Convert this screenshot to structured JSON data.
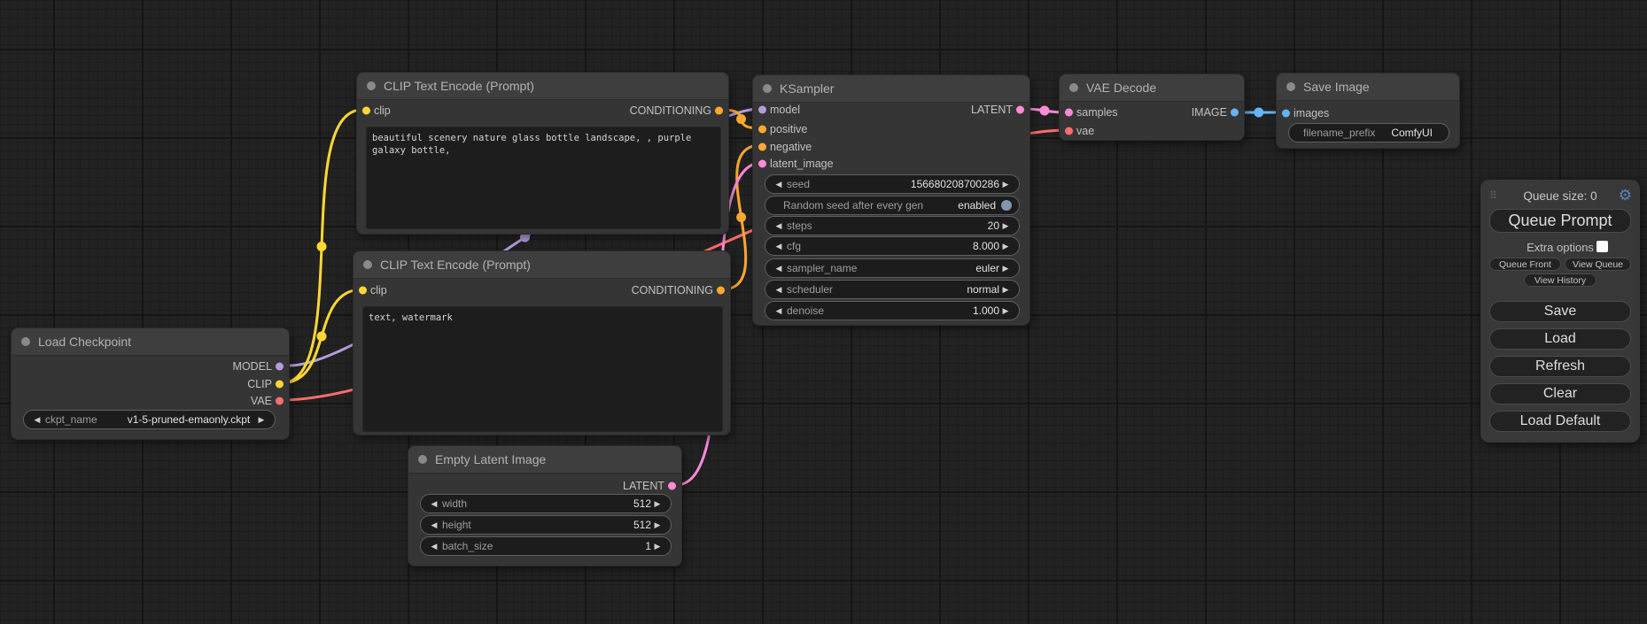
{
  "colors": {
    "model": "#b39ddb",
    "clip": "#fdd835",
    "vae": "#ff6e6e",
    "conditioning": "#ffa931",
    "latent": "#ff8ad8",
    "image": "#64b5f6",
    "toggle": "#8296ad",
    "title_dot": "#8a8a8a"
  },
  "nodes": {
    "load_checkpoint": {
      "title": "Load Checkpoint",
      "outputs": [
        {
          "label": "MODEL"
        },
        {
          "label": "CLIP"
        },
        {
          "label": "VAE"
        }
      ],
      "widgets": [
        {
          "label": "ckpt_name",
          "value": "v1-5-pruned-emaonly.ckpt"
        }
      ]
    },
    "clip_positive": {
      "title": "CLIP Text Encode (Prompt)",
      "inputs": [
        {
          "label": "clip"
        }
      ],
      "outputs": [
        {
          "label": "CONDITIONING"
        }
      ],
      "text": "beautiful scenery nature glass bottle landscape, , purple galaxy bottle,"
    },
    "clip_negative": {
      "title": "CLIP Text Encode (Prompt)",
      "inputs": [
        {
          "label": "clip"
        }
      ],
      "outputs": [
        {
          "label": "CONDITIONING"
        }
      ],
      "text": "text, watermark"
    },
    "empty_latent": {
      "title": "Empty Latent Image",
      "outputs": [
        {
          "label": "LATENT"
        }
      ],
      "widgets": [
        {
          "label": "width",
          "value": "512"
        },
        {
          "label": "height",
          "value": "512"
        },
        {
          "label": "batch_size",
          "value": "1"
        }
      ]
    },
    "ksampler": {
      "title": "KSampler",
      "inputs": [
        {
          "label": "model"
        },
        {
          "label": "positive"
        },
        {
          "label": "negative"
        },
        {
          "label": "latent_image"
        }
      ],
      "outputs": [
        {
          "label": "LATENT"
        }
      ],
      "widgets": [
        {
          "label": "seed",
          "value": "156680208700286"
        },
        {
          "label": "Random seed after every gen",
          "value": "enabled"
        },
        {
          "label": "steps",
          "value": "20"
        },
        {
          "label": "cfg",
          "value": "8.000"
        },
        {
          "label": "sampler_name",
          "value": "euler"
        },
        {
          "label": "scheduler",
          "value": "normal"
        },
        {
          "label": "denoise",
          "value": "1.000"
        }
      ]
    },
    "vae_decode": {
      "title": "VAE Decode",
      "inputs": [
        {
          "label": "samples"
        },
        {
          "label": "vae"
        }
      ],
      "outputs": [
        {
          "label": "IMAGE"
        }
      ]
    },
    "save_image": {
      "title": "Save Image",
      "inputs": [
        {
          "label": "images"
        }
      ],
      "widgets": [
        {
          "label": "filename_prefix",
          "value": "ComfyUI"
        }
      ]
    }
  },
  "queue_panel": {
    "queue_size_label": "Queue size: 0",
    "queue_prompt": "Queue Prompt",
    "extra_options": "Extra options",
    "queue_front": "Queue Front",
    "view_queue": "View Queue",
    "view_history": "View History",
    "buttons": [
      {
        "label": "Save"
      },
      {
        "label": "Load"
      },
      {
        "label": "Refresh"
      },
      {
        "label": "Clear"
      },
      {
        "label": "Load Default"
      }
    ]
  },
  "wires": [
    {
      "name": "model",
      "color": "model",
      "p": [
        327,
        413,
        427,
        413,
        758,
        123,
        858,
        123
      ]
    },
    {
      "name": "clip-positive",
      "color": "clip",
      "p": [
        317,
        433,
        397,
        433,
        329,
        124,
        409,
        124
      ]
    },
    {
      "name": "clip-negative",
      "color": "clip",
      "p": [
        317,
        433,
        377,
        433,
        349,
        327,
        409,
        327
      ]
    },
    {
      "name": "vae",
      "color": "vae",
      "p": [
        317,
        452,
        517,
        452,
        1003,
        147,
        1205,
        147
      ]
    },
    {
      "name": "cond-positive",
      "color": "conditioning",
      "p": [
        814,
        124,
        854,
        124,
        819,
        145,
        859,
        145
      ]
    },
    {
      "name": "cond-negative",
      "color": "conditioning",
      "p": [
        815,
        327,
        884,
        327,
        789,
        164,
        859,
        164
      ]
    },
    {
      "name": "latent-in",
      "color": "latent",
      "p": [
        763,
        548,
        843,
        548,
        779,
        184,
        859,
        184
      ]
    },
    {
      "name": "latent-out",
      "color": "latent",
      "p": [
        1153,
        123,
        1183,
        123,
        1175,
        127,
        1205,
        127
      ]
    },
    {
      "name": "image",
      "color": "image",
      "p": [
        1395,
        127,
        1425,
        127,
        1416,
        127,
        1448,
        127
      ]
    }
  ]
}
